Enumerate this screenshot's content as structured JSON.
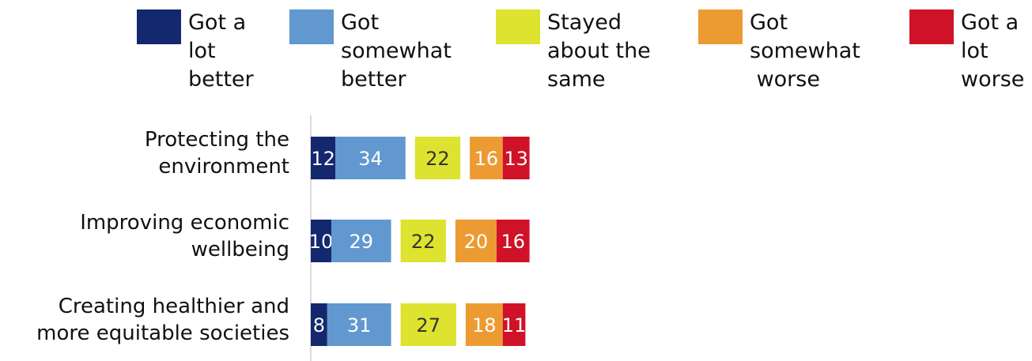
{
  "chart_data": {
    "type": "bar",
    "orientation": "horizontal",
    "stacked": true,
    "diverging": true,
    "legend_placement": "top",
    "grid": false,
    "categories": [
      [
        "Protecting the",
        "environment"
      ],
      [
        "Improving economic",
        "wellbeing"
      ],
      [
        "Creating healthier and",
        "more equitable societies"
      ]
    ],
    "series": [
      {
        "name": [
          "Got a",
          "lot",
          "better"
        ],
        "color": "#14286f",
        "value_color": "#ffffff",
        "values": [
          12,
          10,
          8
        ]
      },
      {
        "name": [
          "Got",
          "somewhat",
          "better"
        ],
        "color": "#6198cf",
        "value_color": "#ffffff",
        "values": [
          34,
          29,
          31
        ]
      },
      {
        "name": [
          "Stayed",
          "about the",
          "same"
        ],
        "color": "#dde32e",
        "value_color": "#333333",
        "values": [
          22,
          22,
          27
        ]
      },
      {
        "name": [
          "Got",
          "somewhat",
          " worse"
        ],
        "color": "#ec9b33",
        "value_color": "#ffffff",
        "values": [
          16,
          20,
          18
        ]
      },
      {
        "name": [
          "Got a",
          "lot",
          "worse"
        ],
        "color": "#cf1228",
        "value_color": "#ffffff",
        "values": [
          13,
          16,
          11
        ]
      }
    ]
  }
}
